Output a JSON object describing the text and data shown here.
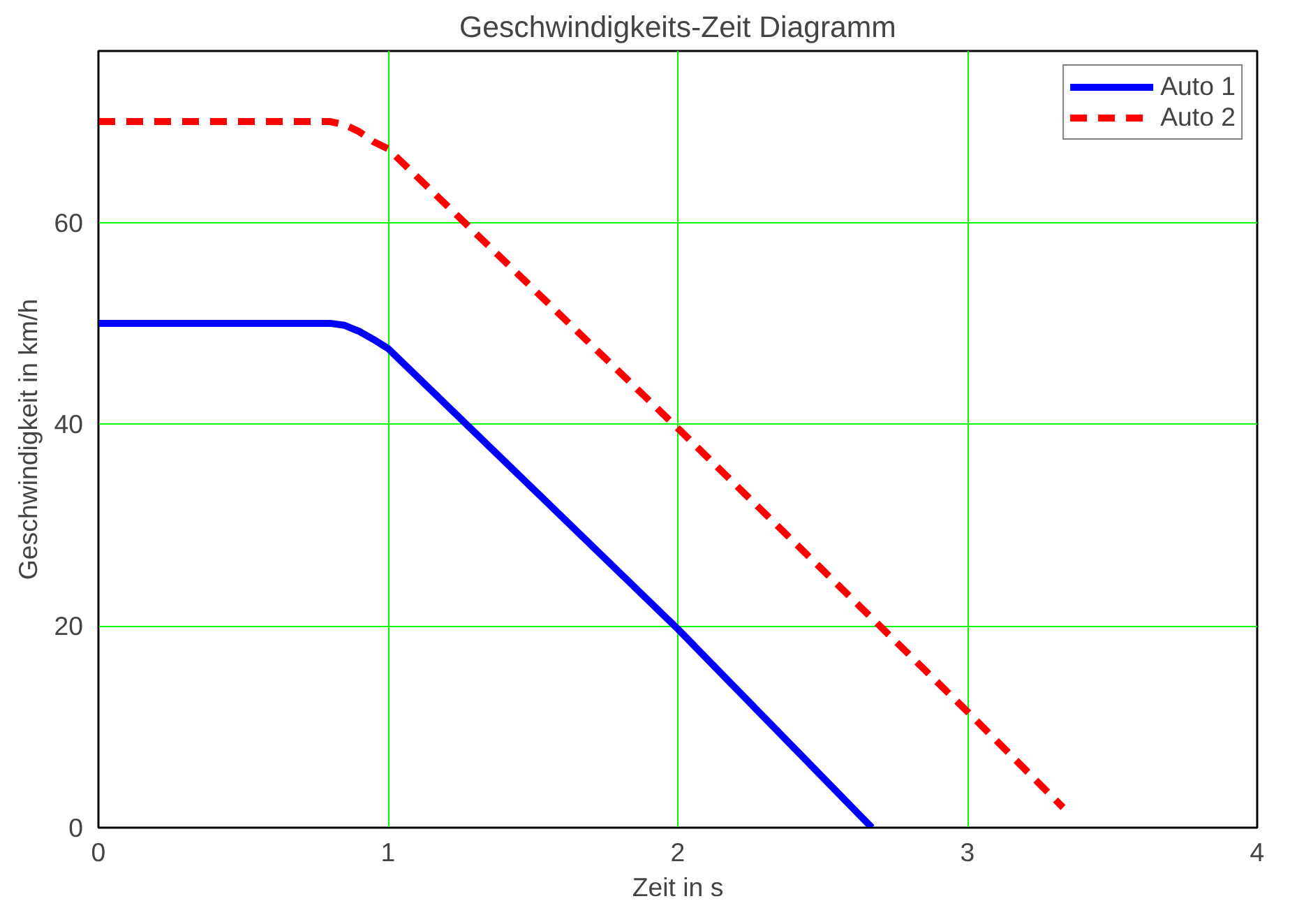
{
  "chart_data": {
    "type": "line",
    "title": "Geschwindigkeits-Zeit Diagramm",
    "xlabel": "Zeit in s",
    "ylabel": "Geschwindigkeit in km/h",
    "xlim": [
      0,
      4
    ],
    "xticks": [
      0,
      1,
      2,
      3,
      4
    ],
    "ylim": [
      0,
      77
    ],
    "yticks": [
      0,
      20,
      40,
      60
    ],
    "grid": true,
    "legend": "top right",
    "series": [
      {
        "name": "Auto 1",
        "color": "#0000ff",
        "line_style": "solid",
        "x": [
          0,
          0.8,
          0.85,
          0.9,
          0.95,
          1,
          2,
          2.67
        ],
        "values": [
          50,
          50,
          49.8,
          49.2,
          48.4,
          47.5,
          19.7,
          0
        ]
      },
      {
        "name": "Auto 2",
        "color": "#ff0000",
        "line_style": "dashed",
        "x": [
          0,
          0.8,
          0.85,
          0.9,
          0.95,
          1,
          2,
          3,
          3.33
        ],
        "values": [
          70,
          70,
          69.7,
          69,
          68,
          67.3,
          39.6,
          11.5,
          2
        ]
      }
    ]
  }
}
